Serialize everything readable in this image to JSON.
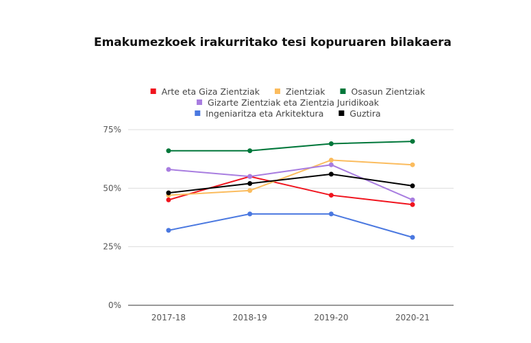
{
  "chart_data": {
    "type": "line",
    "title": "Emakumezkoek irakurritako tesi kopuruaren bilakaera",
    "categories": [
      "2017-18",
      "2018-19",
      "2019-20",
      "2020-21"
    ],
    "y_ticks": [
      "0%",
      "25%",
      "50%",
      "75%"
    ],
    "ylim": [
      0,
      75
    ],
    "y_unit": "%",
    "grid": true,
    "legend_position": "top",
    "series": [
      {
        "name": "Arte eta Giza Zientziak",
        "color": "#f0141e",
        "values": [
          45,
          55,
          47,
          43
        ]
      },
      {
        "name": "Zientziak",
        "color": "#fbbc5e",
        "values": [
          47,
          49,
          62,
          60
        ]
      },
      {
        "name": "Osasun Zientziak",
        "color": "#00773a",
        "values": [
          66,
          66,
          69,
          70
        ]
      },
      {
        "name": "Gizarte Zientziak eta Zientzia Juridikoak",
        "color": "#a87de0",
        "values": [
          58,
          55,
          60,
          45
        ]
      },
      {
        "name": "Ingeniaritza eta Arkitektura",
        "color": "#4a78e0",
        "values": [
          32,
          39,
          39,
          29
        ]
      },
      {
        "name": "Guztira",
        "color": "#000000",
        "values": [
          48,
          52,
          56,
          51
        ]
      }
    ]
  }
}
